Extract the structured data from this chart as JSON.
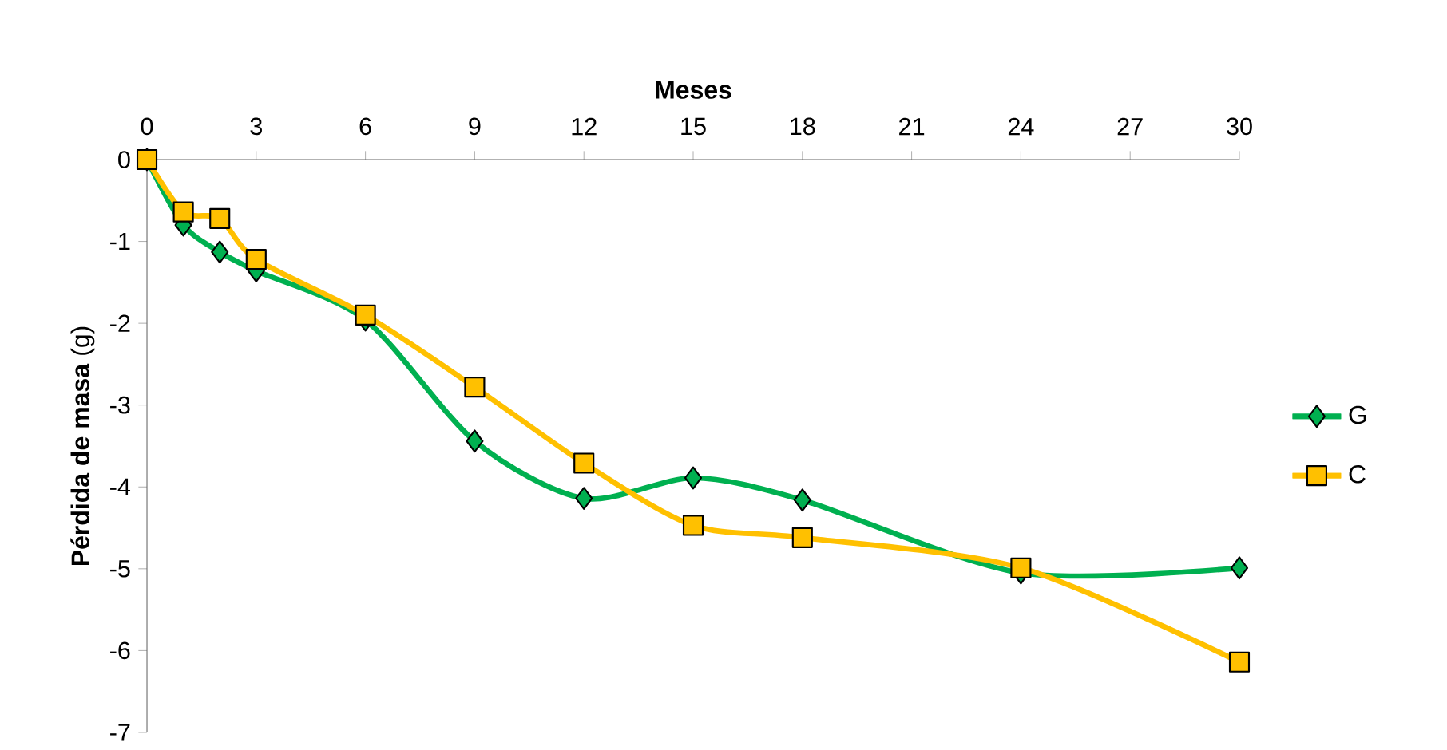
{
  "chart_data": {
    "type": "line",
    "xlabel": "Meses",
    "ylabel": "**Pérdida de masa** (g)",
    "x": [
      0,
      1,
      2,
      3,
      6,
      9,
      12,
      15,
      18,
      24,
      30
    ],
    "xlim": [
      0,
      30
    ],
    "xticks": [
      0,
      3,
      6,
      9,
      12,
      15,
      18,
      21,
      24,
      27,
      30
    ],
    "ylim": [
      -7,
      0
    ],
    "yticks": [
      -7,
      -6,
      -5,
      -4,
      -3,
      -2,
      -1,
      0
    ],
    "legend": "right",
    "line_style": "solid",
    "series": [
      {
        "name": "G",
        "color": "#00b050",
        "marker": "diamond",
        "values": [
          0,
          -0.8,
          -1.13,
          -1.36,
          -1.96,
          -3.44,
          -4.14,
          -3.89,
          -4.16,
          -5.05,
          -4.99
        ]
      },
      {
        "name": "C",
        "color": "#ffc000",
        "marker": "square",
        "values": [
          0,
          -0.64,
          -0.72,
          -1.22,
          -1.9,
          -2.78,
          -3.71,
          -4.47,
          -4.62,
          -4.99,
          -6.14
        ]
      }
    ]
  }
}
